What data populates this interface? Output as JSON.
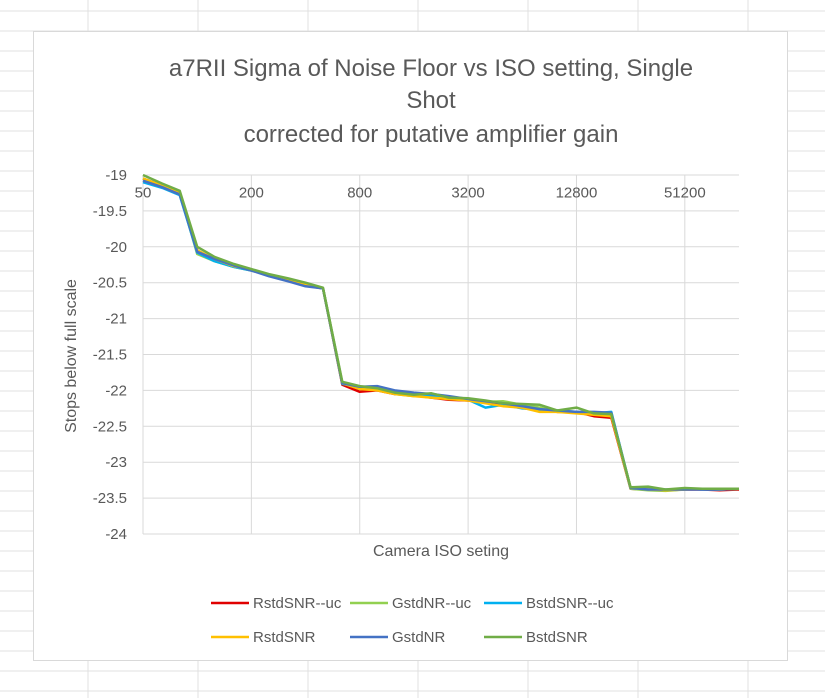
{
  "chart_data": {
    "type": "line",
    "title": [
      "a7RII Sigma of Noise Floor vs ISO setting, Single",
      "Shot",
      "corrected for putative amplifier gain"
    ],
    "xlabel": "Camera ISO seting",
    "ylabel": "Stops below full scale",
    "x_scale": "log2",
    "x_ticks": [
      "50",
      "200",
      "800",
      "3200",
      "12800",
      "51200"
    ],
    "xlim": [
      50,
      102400
    ],
    "ylim": [
      -24,
      -19
    ],
    "y_ticks": [
      "-19",
      "-19.5",
      "-20",
      "-20.5",
      "-21",
      "-21.5",
      "-22",
      "-22.5",
      "-23",
      "-23.5",
      "-24"
    ],
    "grid": true,
    "legend_position": "bottom",
    "x": [
      50,
      64,
      80,
      100,
      125,
      160,
      200,
      250,
      320,
      400,
      500,
      640,
      800,
      1000,
      1250,
      1600,
      2000,
      2500,
      3200,
      4000,
      5000,
      6400,
      8000,
      10000,
      12800,
      16000,
      20000,
      25600,
      32000,
      40000,
      51200,
      64000,
      80000,
      102400
    ],
    "series": [
      {
        "name": "RstdSNR--uc",
        "color": "#e00000",
        "values": [
          -19.05,
          -19.15,
          -19.25,
          -20.05,
          -20.18,
          -20.27,
          -20.32,
          -20.4,
          -20.47,
          -20.54,
          -20.58,
          -21.92,
          -22.02,
          -22.0,
          -22.05,
          -22.07,
          -22.1,
          -22.13,
          -22.14,
          -22.16,
          -22.2,
          -22.22,
          -22.26,
          -22.3,
          -22.3,
          -22.36,
          -22.38,
          -23.37,
          -23.38,
          -23.39,
          -23.38,
          -23.38,
          -23.39,
          -23.38
        ]
      },
      {
        "name": "GstdNR--uc",
        "color": "#92d050",
        "values": [
          -19.05,
          -19.15,
          -19.25,
          -20.1,
          -20.2,
          -20.28,
          -20.33,
          -20.4,
          -20.45,
          -20.52,
          -20.58,
          -21.9,
          -21.98,
          -21.97,
          -22.05,
          -22.08,
          -22.07,
          -22.12,
          -22.13,
          -22.16,
          -22.15,
          -22.2,
          -22.24,
          -22.3,
          -22.3,
          -22.33,
          -22.35,
          -23.37,
          -23.39,
          -23.4,
          -23.38,
          -23.37,
          -23.38,
          -23.37
        ]
      },
      {
        "name": "BstdSNR--uc",
        "color": "#00b0f0",
        "values": [
          -19.1,
          -19.18,
          -19.28,
          -20.08,
          -20.2,
          -20.28,
          -20.33,
          -20.39,
          -20.46,
          -20.53,
          -20.58,
          -21.91,
          -21.95,
          -21.96,
          -22.03,
          -22.06,
          -22.08,
          -22.1,
          -22.13,
          -22.24,
          -22.2,
          -22.25,
          -22.27,
          -22.28,
          -22.3,
          -22.32,
          -22.3,
          -23.36,
          -23.38,
          -23.39,
          -23.37,
          -23.38,
          -23.38,
          -23.37
        ]
      },
      {
        "name": "RstdSNR",
        "color": "#ffc000",
        "values": [
          -19.05,
          -19.15,
          -19.25,
          -20.05,
          -20.17,
          -20.27,
          -20.32,
          -20.4,
          -20.46,
          -20.53,
          -20.58,
          -21.9,
          -21.98,
          -22.0,
          -22.05,
          -22.08,
          -22.1,
          -22.12,
          -22.14,
          -22.18,
          -22.22,
          -22.24,
          -22.3,
          -22.3,
          -22.32,
          -22.34,
          -22.36,
          -23.36,
          -23.38,
          -23.39,
          -23.38,
          -23.37,
          -23.38,
          -23.37
        ]
      },
      {
        "name": "GstdNR",
        "color": "#4472c4",
        "values": [
          -19.08,
          -19.17,
          -19.27,
          -20.07,
          -20.17,
          -20.26,
          -20.33,
          -20.41,
          -20.48,
          -20.55,
          -20.58,
          -21.9,
          -21.95,
          -21.94,
          -22.0,
          -22.03,
          -22.05,
          -22.08,
          -22.12,
          -22.15,
          -22.18,
          -22.22,
          -22.26,
          -22.28,
          -22.3,
          -22.3,
          -22.31,
          -23.36,
          -23.38,
          -23.38,
          -23.38,
          -23.38,
          -23.38,
          -23.37
        ]
      },
      {
        "name": "BstdSNR",
        "color": "#70ad47",
        "values": [
          -19.0,
          -19.12,
          -19.22,
          -20.0,
          -20.14,
          -20.24,
          -20.31,
          -20.38,
          -20.44,
          -20.5,
          -20.57,
          -21.88,
          -21.94,
          -21.97,
          -22.03,
          -22.06,
          -22.04,
          -22.1,
          -22.11,
          -22.14,
          -22.18,
          -22.19,
          -22.2,
          -22.28,
          -22.24,
          -22.32,
          -22.33,
          -23.35,
          -23.34,
          -23.38,
          -23.36,
          -23.37,
          -23.37,
          -23.37
        ]
      }
    ]
  }
}
